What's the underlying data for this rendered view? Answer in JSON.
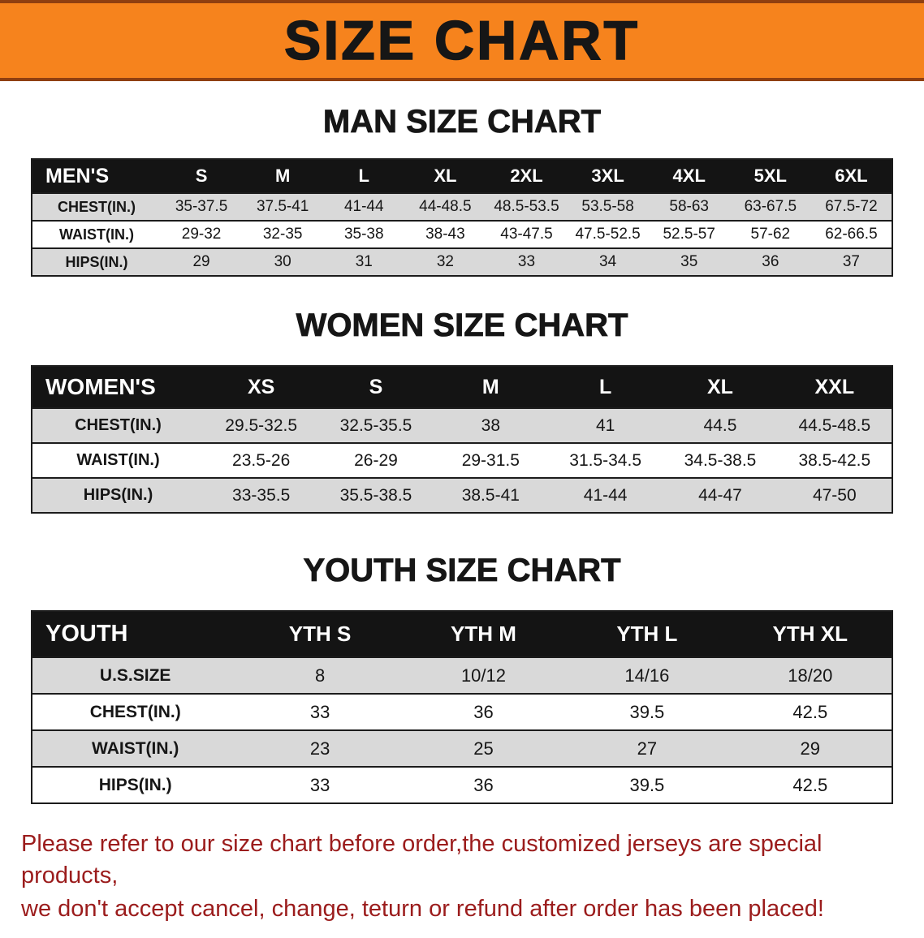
{
  "banner": {
    "title": "SIZE CHART"
  },
  "colors": {
    "banner_orange": "#F6831D",
    "banner_edge": "#8F3F10",
    "table_header_black": "#141414",
    "row_stripe_gray": "#D9D9D9",
    "border_black": "#1C1C1C",
    "footer_red": "#9B1C1C",
    "title_black": "#161616"
  },
  "sections": [
    {
      "id": "men",
      "title": "MAN SIZE CHART",
      "header": [
        "MEN'S",
        "S",
        "M",
        "L",
        "XL",
        "2XL",
        "3XL",
        "4XL",
        "5XL",
        "6XL"
      ],
      "rows": [
        [
          "CHEST(IN.)",
          "35-37.5",
          "37.5-41",
          "41-44",
          "44-48.5",
          "48.5-53.5",
          "53.5-58",
          "58-63",
          "63-67.5",
          "67.5-72"
        ],
        [
          "WAIST(IN.)",
          "29-32",
          "32-35",
          "35-38",
          "38-43",
          "43-47.5",
          "47.5-52.5",
          "52.5-57",
          "57-62",
          "62-66.5"
        ],
        [
          "HIPS(IN.)",
          "29",
          "30",
          "31",
          "32",
          "33",
          "34",
          "35",
          "36",
          "37"
        ]
      ]
    },
    {
      "id": "women",
      "title": "WOMEN SIZE CHART",
      "header": [
        "WOMEN'S",
        "XS",
        "S",
        "M",
        "L",
        "XL",
        "XXL"
      ],
      "rows": [
        [
          "CHEST(IN.)",
          "29.5-32.5",
          "32.5-35.5",
          "38",
          "41",
          "44.5",
          "44.5-48.5"
        ],
        [
          "WAIST(IN.)",
          "23.5-26",
          "26-29",
          "29-31.5",
          "31.5-34.5",
          "34.5-38.5",
          "38.5-42.5"
        ],
        [
          "HIPS(IN.)",
          "33-35.5",
          "35.5-38.5",
          "38.5-41",
          "41-44",
          "44-47",
          "47-50"
        ]
      ]
    },
    {
      "id": "youth",
      "title": "YOUTH SIZE CHART",
      "header": [
        "YOUTH",
        "YTH S",
        "YTH M",
        "YTH L",
        "YTH XL"
      ],
      "rows": [
        [
          "U.S.SIZE",
          "8",
          "10/12",
          "14/16",
          "18/20"
        ],
        [
          "CHEST(IN.)",
          "33",
          "36",
          "39.5",
          "42.5"
        ],
        [
          "WAIST(IN.)",
          "23",
          "25",
          "27",
          "29"
        ],
        [
          "HIPS(IN.)",
          "33",
          "36",
          "39.5",
          "42.5"
        ]
      ]
    }
  ],
  "footer": {
    "line1": "Please refer to our size chart before order,the customized jerseys are special products,",
    "line2": "we don't accept cancel, change, teturn or refund after order has been placed!"
  }
}
